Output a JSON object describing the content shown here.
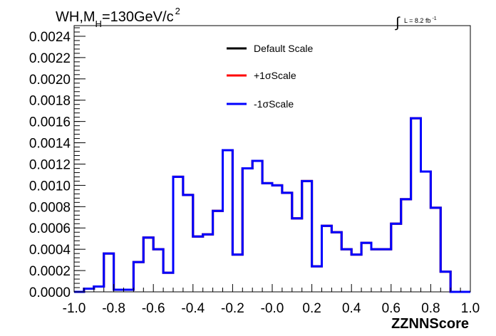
{
  "figure": {
    "title_prefix": "WH,M",
    "title_subscript": "H",
    "title_suffix": "=130GeV/c",
    "title_superscript": "2",
    "lumi_symbol": "∫",
    "lumi_text": "L = 8.2 fb",
    "lumi_superscript": "-1"
  },
  "chart_data": {
    "type": "line",
    "style": "step-histogram",
    "title": "WH,M_H=130GeV/c^2",
    "xlabel": "ZZNNScore",
    "ylabel": "",
    "xlim": [
      -1.0,
      1.0
    ],
    "ylim": [
      0.0,
      0.0025
    ],
    "x_ticks": [
      "-1.0",
      "-0.8",
      "-0.6",
      "-0.4",
      "-0.2",
      "-0.0",
      "0.2",
      "0.4",
      "0.6",
      "0.8",
      "1.0"
    ],
    "y_ticks": [
      "0.0000",
      "0.0002",
      "0.0004",
      "0.0006",
      "0.0008",
      "0.0010",
      "0.0012",
      "0.0014",
      "0.0016",
      "0.0018",
      "0.0020",
      "0.0022",
      "0.0024"
    ],
    "bin_edges": [
      -1.0,
      -0.95,
      -0.9,
      -0.85,
      -0.8,
      -0.75,
      -0.7,
      -0.65,
      -0.6,
      -0.55,
      -0.5,
      -0.45,
      -0.4,
      -0.35,
      -0.3,
      -0.25,
      -0.2,
      -0.15,
      -0.1,
      -0.05,
      0.0,
      0.05,
      0.1,
      0.15,
      0.2,
      0.25,
      0.3,
      0.35,
      0.4,
      0.45,
      0.5,
      0.55,
      0.6,
      0.65,
      0.7,
      0.75,
      0.8,
      0.85,
      0.9,
      0.95,
      1.0
    ],
    "legend_position": "top-center",
    "grid": false,
    "series": [
      {
        "name": "Default Scale",
        "color": "#000000",
        "values": [
          0.0,
          3e-05,
          5e-05,
          0.00036,
          2e-05,
          2e-05,
          0.00028,
          0.00051,
          0.0004,
          0.00018,
          0.00108,
          0.00091,
          0.00052,
          0.00054,
          0.00076,
          0.00133,
          0.00035,
          0.00116,
          0.00123,
          0.00102,
          0.001,
          0.00093,
          0.00069,
          0.00104,
          0.00024,
          0.00062,
          0.00056,
          0.0004,
          0.00035,
          0.00046,
          0.0004,
          0.0004,
          0.00064,
          0.00087,
          0.00163,
          0.00113,
          0.00079,
          0.00019,
          0.0,
          0.0
        ]
      },
      {
        "name": "+1σScale",
        "color": "#ff0000",
        "values": [
          0.0,
          3e-05,
          5e-05,
          0.00036,
          2e-05,
          2e-05,
          0.00028,
          0.00051,
          0.0004,
          0.00018,
          0.00108,
          0.00091,
          0.00052,
          0.00054,
          0.00076,
          0.00133,
          0.00035,
          0.00116,
          0.00123,
          0.00102,
          0.001,
          0.00093,
          0.00069,
          0.00104,
          0.00024,
          0.00062,
          0.00056,
          0.0004,
          0.00035,
          0.00046,
          0.0004,
          0.0004,
          0.00064,
          0.00087,
          0.00163,
          0.00113,
          0.00079,
          0.00019,
          0.0,
          0.0
        ]
      },
      {
        "name": "-1σScale",
        "color": "#0000ff",
        "values": [
          0.0,
          3e-05,
          5e-05,
          0.00036,
          2e-05,
          2e-05,
          0.00028,
          0.00051,
          0.0004,
          0.00018,
          0.00108,
          0.00091,
          0.00052,
          0.00054,
          0.00076,
          0.00133,
          0.00035,
          0.00116,
          0.00123,
          0.00102,
          0.001,
          0.00093,
          0.00069,
          0.00104,
          0.00024,
          0.00062,
          0.00056,
          0.0004,
          0.00035,
          0.00046,
          0.0004,
          0.0004,
          0.00064,
          0.00087,
          0.00163,
          0.00113,
          0.00079,
          0.00019,
          0.0,
          0.0
        ]
      }
    ]
  }
}
